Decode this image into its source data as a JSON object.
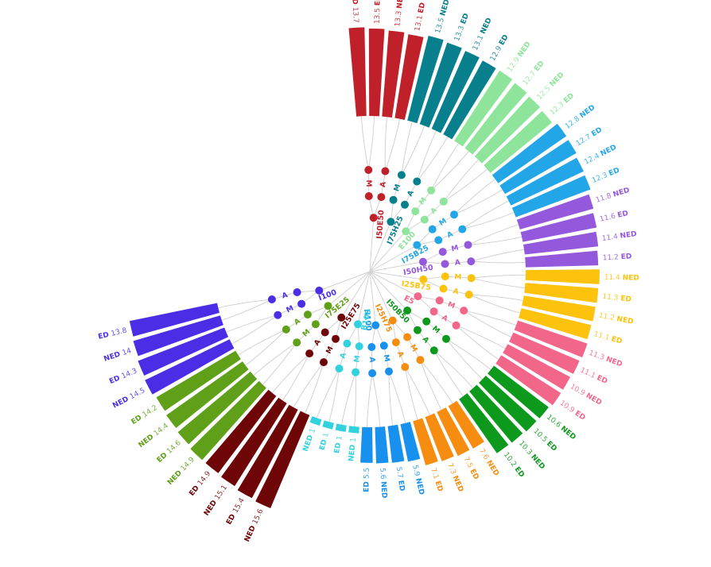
{
  "chart_data": {
    "type": "radial-bar-tree",
    "groups": [
      {
        "name": "I50E50",
        "color": "#c0202a",
        "bars": [
          [
            "13.7",
            "NED"
          ],
          [
            "13.5",
            "ED"
          ],
          [
            "13.3",
            "NED"
          ],
          [
            "13.1",
            "ED"
          ]
        ],
        "nodes": [
          "M",
          "A"
        ]
      },
      {
        "name": "I75H25",
        "color": "#077f8c",
        "bars": [
          [
            "13.5",
            "NED"
          ],
          [
            "13.3",
            "ED"
          ],
          [
            "13.1",
            "NED"
          ],
          [
            "12.9",
            "ED"
          ]
        ],
        "nodes": [
          "M",
          "A"
        ]
      },
      {
        "name": "E100",
        "color": "#8ee49a",
        "bars": [
          [
            "12.9",
            "NED"
          ],
          [
            "12.7",
            "ED"
          ],
          [
            "12.5",
            "NED"
          ],
          [
            "12.3",
            "ED"
          ]
        ],
        "nodes": [
          "M",
          "A"
        ]
      },
      {
        "name": "I75B25",
        "color": "#23a6e8",
        "bars": [
          [
            "12.8",
            "NED"
          ],
          [
            "12.7",
            "ED"
          ],
          [
            "12.4",
            "NED"
          ],
          [
            "12.3",
            "ED"
          ]
        ],
        "nodes": [
          "M",
          "A"
        ]
      },
      {
        "name": "I50H50",
        "color": "#9458dc",
        "bars": [
          [
            "11.8",
            "NED"
          ],
          [
            "11.6",
            "ED"
          ],
          [
            "11.4",
            "NED"
          ],
          [
            "11.2",
            "ED"
          ]
        ],
        "nodes": [
          "M",
          "A"
        ]
      },
      {
        "name": "I25B75",
        "color": "#fcc20c",
        "bars": [
          [
            "11.4",
            "NED"
          ],
          [
            "11.3",
            "ED"
          ],
          [
            "11.2",
            "NED"
          ],
          [
            "11.1",
            "ED"
          ]
        ],
        "nodes": [
          "M",
          "A"
        ]
      },
      {
        "name": "E5",
        "color": "#f2668a",
        "bars": [
          [
            "11.3",
            "NED"
          ],
          [
            "11.1",
            "ED"
          ],
          [
            "10.9",
            "NED"
          ],
          [
            "10.9",
            "ED"
          ]
        ],
        "nodes": [
          "M",
          "A"
        ]
      },
      {
        "name": "I50B50",
        "color": "#0d9a1c",
        "bars": [
          [
            "10.6",
            "NED"
          ],
          [
            "10.5",
            "ED"
          ],
          [
            "10.3",
            "NED"
          ],
          [
            "10.2",
            "ED"
          ]
        ],
        "nodes": [
          "M",
          "A"
        ]
      },
      {
        "name": "I25H75",
        "color": "#f68c10",
        "bars": [
          [
            "7.6",
            "NED"
          ],
          [
            "7.5",
            "ED"
          ],
          [
            "7.3",
            "NED"
          ],
          [
            "7.1",
            "ED"
          ]
        ],
        "nodes": [
          "M",
          "A"
        ]
      },
      {
        "name": "H100",
        "color": "#1790ee",
        "bars": [
          [
            "5.9",
            "NED"
          ],
          [
            "5.7",
            "ED"
          ],
          [
            "5.6",
            "NED"
          ],
          [
            "5.5",
            "ED"
          ]
        ],
        "nodes": [
          "M",
          "A"
        ]
      },
      {
        "name": "B100",
        "color": "#32d1de",
        "bars": [
          [
            "1",
            "NED"
          ],
          [
            "1",
            "ED"
          ],
          [
            "1",
            "ED"
          ],
          [
            "1",
            "NED"
          ]
        ],
        "nodes": [
          "M",
          "A"
        ]
      },
      {
        "name": "I25E75",
        "color": "#6e0507",
        "bars": [
          [
            "15.6",
            "NED"
          ],
          [
            "15.4",
            "ED"
          ],
          [
            "15.1",
            "NED"
          ],
          [
            "14.9",
            "ED"
          ]
        ],
        "nodes": [
          "M",
          "A"
        ]
      },
      {
        "name": "I75E25",
        "color": "#60a018",
        "bars": [
          [
            "14.9",
            "NED"
          ],
          [
            "14.6",
            "ED"
          ],
          [
            "14.4",
            "NED"
          ],
          [
            "14.2",
            "ED"
          ]
        ],
        "nodes": [
          "M",
          "A"
        ]
      },
      {
        "name": "I100",
        "color": "#4b2de5",
        "bars": [
          [
            "14.5",
            "NED"
          ],
          [
            "14.3",
            "ED"
          ],
          [
            "14",
            "NED"
          ],
          [
            "13.8",
            "ED"
          ]
        ],
        "nodes": [
          "M",
          "A"
        ]
      }
    ]
  }
}
